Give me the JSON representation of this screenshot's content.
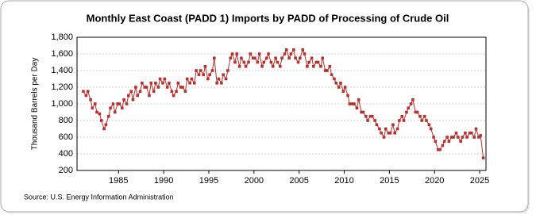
{
  "chart_data": {
    "type": "line",
    "title": "Monthly East Coast (PADD 1) Imports by PADD of Processing of Crude Oil",
    "y_label": "Thousand Barrels per Day",
    "source": "Source: U.S. Energy Information Administration",
    "color": "#b8312f",
    "grid": true,
    "xlim": [
      1980.4,
      2025.7
    ],
    "xticks": [
      1985,
      1990,
      1995,
      2000,
      2005,
      2010,
      2015,
      2020,
      2025
    ],
    "ylim": [
      200,
      1800
    ],
    "yticks": [
      200,
      400,
      600,
      800,
      {
        "value": 1000,
        "label": "1,000"
      },
      {
        "value": 1200,
        "label": "1,200"
      },
      {
        "value": 1400,
        "label": "1,400"
      },
      {
        "value": 1600,
        "label": "1,600"
      },
      {
        "value": 1800,
        "label": "1,800"
      }
    ],
    "x": [
      1981.1,
      1981.4,
      1981.6,
      1981.9,
      1982.1,
      1982.4,
      1982.6,
      1982.9,
      1983.1,
      1983.4,
      1983.6,
      1983.9,
      1984.1,
      1984.4,
      1984.6,
      1984.9,
      1985.1,
      1985.4,
      1985.6,
      1985.9,
      1986.1,
      1986.4,
      1986.6,
      1986.9,
      1987.1,
      1987.4,
      1987.6,
      1987.9,
      1988.1,
      1988.4,
      1988.6,
      1988.9,
      1989.1,
      1989.4,
      1989.6,
      1989.9,
      1990.1,
      1990.4,
      1990.6,
      1990.9,
      1991.1,
      1991.4,
      1991.6,
      1991.9,
      1992.1,
      1992.4,
      1992.6,
      1992.9,
      1993.1,
      1993.4,
      1993.6,
      1993.9,
      1994.1,
      1994.4,
      1994.6,
      1994.9,
      1995.1,
      1995.4,
      1995.6,
      1995.9,
      1996.1,
      1996.4,
      1996.6,
      1996.9,
      1997.1,
      1997.4,
      1997.6,
      1997.9,
      1998.1,
      1998.4,
      1998.6,
      1998.9,
      1999.1,
      1999.4,
      1999.6,
      1999.9,
      2000.1,
      2000.4,
      2000.6,
      2000.9,
      2001.1,
      2001.4,
      2001.6,
      2001.9,
      2002.1,
      2002.4,
      2002.6,
      2002.9,
      2003.1,
      2003.4,
      2003.6,
      2003.9,
      2004.1,
      2004.4,
      2004.6,
      2004.9,
      2005.1,
      2005.4,
      2005.6,
      2005.9,
      2006.1,
      2006.4,
      2006.6,
      2006.9,
      2007.1,
      2007.4,
      2007.6,
      2007.9,
      2008.1,
      2008.4,
      2008.6,
      2008.9,
      2009.1,
      2009.4,
      2009.6,
      2009.9,
      2010.1,
      2010.4,
      2010.6,
      2010.9,
      2011.1,
      2011.4,
      2011.6,
      2011.9,
      2012.1,
      2012.4,
      2012.6,
      2012.9,
      2013.1,
      2013.4,
      2013.6,
      2013.9,
      2014.1,
      2014.4,
      2014.6,
      2014.9,
      2015.1,
      2015.4,
      2015.6,
      2015.9,
      2016.1,
      2016.4,
      2016.6,
      2016.9,
      2017.1,
      2017.4,
      2017.6,
      2017.9,
      2018.1,
      2018.4,
      2018.6,
      2018.9,
      2019.1,
      2019.4,
      2019.6,
      2019.9,
      2020.1,
      2020.4,
      2020.6,
      2020.9,
      2021.1,
      2021.4,
      2021.6,
      2021.9,
      2022.1,
      2022.4,
      2022.6,
      2022.9,
      2023.1,
      2023.4,
      2023.6,
      2023.9,
      2024.1,
      2024.4,
      2024.6,
      2024.9,
      2025.1,
      2025.4
    ],
    "values": [
      1150,
      1100,
      1150,
      1050,
      950,
      1000,
      900,
      880,
      800,
      700,
      750,
      850,
      950,
      1000,
      900,
      1000,
      1000,
      950,
      1050,
      1000,
      1100,
      1150,
      1050,
      1200,
      1100,
      1150,
      1250,
      1200,
      1200,
      1100,
      1250,
      1150,
      1250,
      1200,
      1300,
      1250,
      1300,
      1200,
      1250,
      1150,
      1100,
      1150,
      1250,
      1200,
      1200,
      1150,
      1300,
      1250,
      1300,
      1250,
      1400,
      1350,
      1400,
      1350,
      1450,
      1300,
      1350,
      1400,
      1550,
      1250,
      1300,
      1250,
      1350,
      1300,
      1400,
      1550,
      1600,
      1500,
      1600,
      1450,
      1550,
      1500,
      1450,
      1500,
      1600,
      1550,
      1550,
      1500,
      1600,
      1450,
      1500,
      1550,
      1600,
      1500,
      1450,
      1550,
      1500,
      1450,
      1550,
      1600,
      1650,
      1550,
      1600,
      1650,
      1550,
      1500,
      1550,
      1650,
      1600,
      1450,
      1500,
      1550,
      1450,
      1500,
      1500,
      1450,
      1550,
      1400,
      1400,
      1450,
      1350,
      1300,
      1250,
      1200,
      1250,
      1150,
      1200,
      1100,
      1000,
      1000,
      1000,
      950,
      1050,
      900,
      900,
      850,
      800,
      850,
      850,
      800,
      750,
      700,
      650,
      600,
      700,
      650,
      650,
      750,
      650,
      700,
      800,
      850,
      800,
      900,
      950,
      1000,
      1050,
      900,
      900,
      850,
      800,
      850,
      800,
      750,
      700,
      600,
      550,
      450,
      450,
      500,
      550,
      600,
      550,
      600,
      600,
      650,
      600,
      550,
      600,
      650,
      600,
      650,
      650,
      600,
      700,
      600,
      620,
      350
    ]
  }
}
